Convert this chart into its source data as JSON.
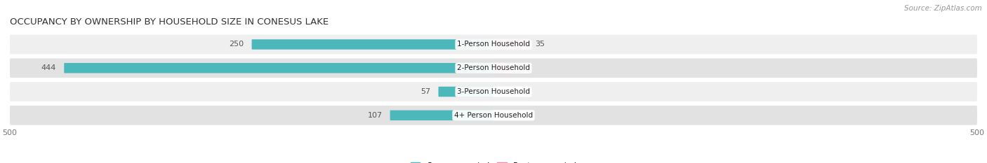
{
  "title": "OCCUPANCY BY OWNERSHIP BY HOUSEHOLD SIZE IN CONESUS LAKE",
  "source": "Source: ZipAtlas.com",
  "categories": [
    "1-Person Household",
    "2-Person Household",
    "3-Person Household",
    "4+ Person Household"
  ],
  "owner_values": [
    250,
    444,
    57,
    107
  ],
  "renter_values": [
    35,
    17,
    0,
    0
  ],
  "owner_color": "#4db8bc",
  "renter_color": "#f08aaa",
  "row_bg_colors": [
    "#efefef",
    "#e2e2e2",
    "#efefef",
    "#e2e2e2"
  ],
  "label_color": "#555555",
  "xlim": [
    -500,
    500
  ],
  "title_fontsize": 9.5,
  "source_fontsize": 7.5,
  "bar_label_fontsize": 8,
  "category_fontsize": 7.5,
  "legend_fontsize": 8,
  "figsize": [
    14.06,
    2.33
  ],
  "dpi": 100
}
